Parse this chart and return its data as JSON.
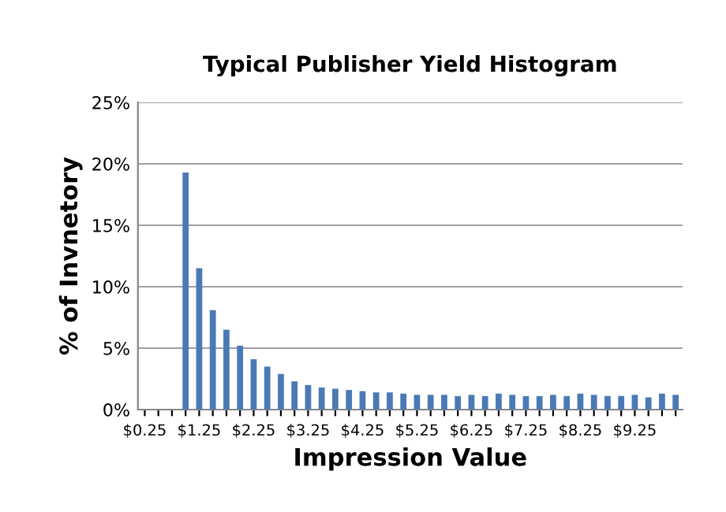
{
  "chart_data": {
    "type": "bar",
    "title": "Typical Publisher Yield Histogram",
    "xlabel": "Impression Value",
    "ylabel": "% of Invnetory",
    "categories": [
      "$0.25",
      null,
      null,
      null,
      "$1.25",
      null,
      null,
      null,
      "$2.25",
      null,
      null,
      null,
      "$3.25",
      null,
      null,
      null,
      "$4.25",
      null,
      null,
      null,
      "$5.25",
      null,
      null,
      null,
      "$6.25",
      null,
      null,
      null,
      "$7.25",
      null,
      null,
      null,
      "$8.25",
      null,
      null,
      null,
      "$9.25",
      null,
      null,
      null
    ],
    "values": [
      0,
      0,
      0,
      19.3,
      11.5,
      8.1,
      6.5,
      5.2,
      4.1,
      3.5,
      2.9,
      2.3,
      2.0,
      1.8,
      1.7,
      1.6,
      1.5,
      1.4,
      1.4,
      1.3,
      1.2,
      1.2,
      1.2,
      1.1,
      1.2,
      1.1,
      1.3,
      1.2,
      1.1,
      1.1,
      1.2,
      1.1,
      1.3,
      1.2,
      1.1,
      1.1,
      1.2,
      1.0,
      1.3,
      1.2
    ],
    "color": "#4a7ab5",
    "ylim": [
      0,
      25
    ],
    "yticks": [
      {
        "value": 0,
        "label": "0%"
      },
      {
        "value": 5,
        "label": "5%"
      },
      {
        "value": 10,
        "label": "10%"
      },
      {
        "value": 15,
        "label": "15%"
      },
      {
        "value": 20,
        "label": "20%"
      },
      {
        "value": 25,
        "label": "25%"
      }
    ],
    "grid": "y",
    "legend": false
  }
}
